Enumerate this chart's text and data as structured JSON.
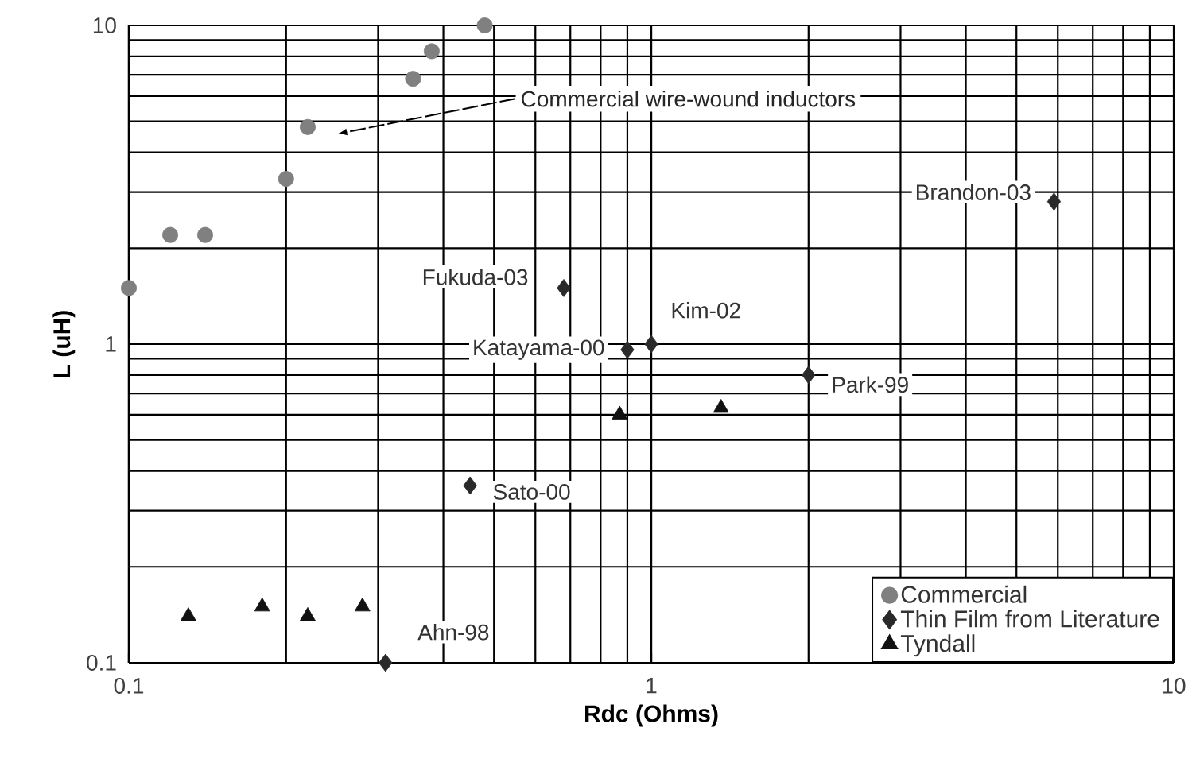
{
  "chart_data": {
    "type": "scatter",
    "xlabel": "Rdc (Ohms)",
    "ylabel": "L (uH)",
    "log": "xy",
    "grid": true,
    "legend": "bottom right",
    "xlim": [
      0.1,
      10
    ],
    "ylim": [
      0.1,
      10
    ],
    "xticks": [
      0.1,
      1,
      10
    ],
    "yticks": [
      0.1,
      1,
      10
    ],
    "series": [
      {
        "name": "Commercial",
        "color": "#808080",
        "marker": "circle",
        "x": [
          0.1,
          0.12,
          0.14,
          0.2,
          0.22,
          0.35,
          0.38,
          0.48
        ],
        "values": [
          1.5,
          2.2,
          2.2,
          3.3,
          4.8,
          6.8,
          8.3,
          10
        ]
      },
      {
        "name": "Thin Film from Literature",
        "color": "#2a2a2a",
        "marker": "diamond",
        "x": [
          5.9,
          0.68,
          0.9,
          1.0,
          2.0,
          0.45,
          0.31
        ],
        "values": [
          2.8,
          1.5,
          0.96,
          1.0,
          0.8,
          0.36,
          0.1
        ]
      },
      {
        "name": "Tyndall",
        "color": "#111111",
        "marker": "triangle",
        "x": [
          0.13,
          0.18,
          0.22,
          0.28,
          0.87,
          1.36
        ],
        "values": [
          0.14,
          0.15,
          0.14,
          0.15,
          0.6,
          0.63
        ]
      }
    ],
    "annotations": [
      "Commercial wire-wound inductors",
      {
        "text": "Brandon-03",
        "x": 5.9,
        "y": 2.8
      },
      {
        "text": "Fukuda-03",
        "x": 0.68,
        "y": 1.5
      },
      {
        "text": "Katayama-00",
        "x": 0.9,
        "y": 0.96
      },
      {
        "text": "Kim-02",
        "x": 1.0,
        "y": 1.0
      },
      {
        "text": "Park-99",
        "x": 2.0,
        "y": 0.8
      },
      {
        "text": "Sato-00",
        "x": 0.45,
        "y": 0.36
      },
      {
        "text": "Ahn-98",
        "x": 0.31,
        "y": 0.1
      }
    ]
  }
}
